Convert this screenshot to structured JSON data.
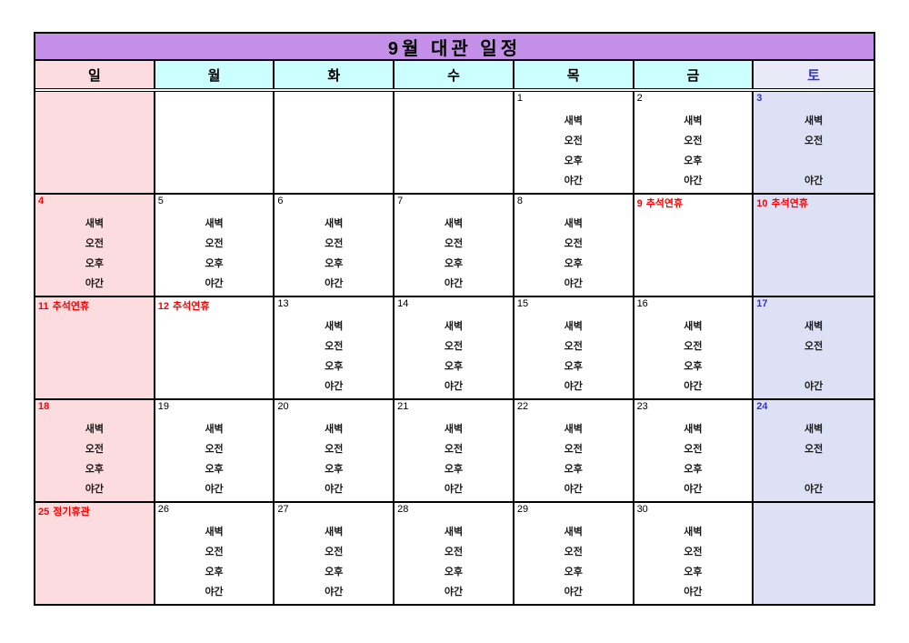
{
  "title": "9월 대관 일정",
  "weekdays": [
    {
      "label": "일"
    },
    {
      "label": "월"
    },
    {
      "label": "화"
    },
    {
      "label": "수"
    },
    {
      "label": "목"
    },
    {
      "label": "금"
    },
    {
      "label": "토"
    }
  ],
  "time_slot_labels": [
    "새벽",
    "오전",
    "오후",
    "야간"
  ],
  "colors": {
    "title_bg": "#C48FE8",
    "sunday_bg": "#FCDCDE",
    "weekday_header_bg": "#CCFFFF",
    "saturday_header_bg": "#E9E9F8",
    "saturday_cell_bg": "#DEE1F5",
    "holiday_red": "#FF0000",
    "saturday_blue": "#3333CC",
    "border": "#000000"
  },
  "weeks": [
    {
      "cells": [
        {
          "day": "",
          "color": "",
          "note": "",
          "slots": []
        },
        {
          "day": "",
          "color": "",
          "note": "",
          "slots": []
        },
        {
          "day": "",
          "color": "",
          "note": "",
          "slots": []
        },
        {
          "day": "",
          "color": "",
          "note": "",
          "slots": []
        },
        {
          "day": "1",
          "color": "black",
          "note": "",
          "slots": [
            "새벽",
            "오전",
            "오후",
            "야간"
          ]
        },
        {
          "day": "2",
          "color": "black",
          "note": "",
          "slots": [
            "새벽",
            "오전",
            "오후",
            "야간"
          ]
        },
        {
          "day": "3",
          "color": "blue",
          "note": "",
          "slots": [
            "새벽",
            "오전",
            "",
            "야간"
          ]
        }
      ]
    },
    {
      "cells": [
        {
          "day": "4",
          "color": "red",
          "note": "",
          "slots": [
            "새벽",
            "오전",
            "오후",
            "야간"
          ]
        },
        {
          "day": "5",
          "color": "black",
          "note": "",
          "slots": [
            "새벽",
            "오전",
            "오후",
            "야간"
          ]
        },
        {
          "day": "6",
          "color": "black",
          "note": "",
          "slots": [
            "새벽",
            "오전",
            "오후",
            "야간"
          ]
        },
        {
          "day": "7",
          "color": "black",
          "note": "",
          "slots": [
            "새벽",
            "오전",
            "오후",
            "야간"
          ]
        },
        {
          "day": "8",
          "color": "black",
          "note": "",
          "slots": [
            "새벽",
            "오전",
            "오후",
            "야간"
          ]
        },
        {
          "day": "9",
          "color": "red",
          "note": "추석연휴",
          "slots": []
        },
        {
          "day": "10",
          "color": "red",
          "note": "추석연휴",
          "slots": []
        }
      ]
    },
    {
      "cells": [
        {
          "day": "11",
          "color": "red",
          "note": "추석연휴",
          "slots": []
        },
        {
          "day": "12",
          "color": "red",
          "note": "추석연휴",
          "slots": []
        },
        {
          "day": "13",
          "color": "black",
          "note": "",
          "slots": [
            "새벽",
            "오전",
            "오후",
            "야간"
          ]
        },
        {
          "day": "14",
          "color": "black",
          "note": "",
          "slots": [
            "새벽",
            "오전",
            "오후",
            "야간"
          ]
        },
        {
          "day": "15",
          "color": "black",
          "note": "",
          "slots": [
            "새벽",
            "오전",
            "오후",
            "야간"
          ]
        },
        {
          "day": "16",
          "color": "black",
          "note": "",
          "slots": [
            "새벽",
            "오전",
            "오후",
            "야간"
          ]
        },
        {
          "day": "17",
          "color": "blue",
          "note": "",
          "slots": [
            "새벽",
            "오전",
            "",
            "야간"
          ]
        }
      ]
    },
    {
      "cells": [
        {
          "day": "18",
          "color": "red",
          "note": "",
          "slots": [
            "새벽",
            "오전",
            "오후",
            "야간"
          ]
        },
        {
          "day": "19",
          "color": "black",
          "note": "",
          "slots": [
            "새벽",
            "오전",
            "오후",
            "야간"
          ]
        },
        {
          "day": "20",
          "color": "black",
          "note": "",
          "slots": [
            "새벽",
            "오전",
            "오후",
            "야간"
          ]
        },
        {
          "day": "21",
          "color": "black",
          "note": "",
          "slots": [
            "새벽",
            "오전",
            "오후",
            "야간"
          ]
        },
        {
          "day": "22",
          "color": "black",
          "note": "",
          "slots": [
            "새벽",
            "오전",
            "오후",
            "야간"
          ]
        },
        {
          "day": "23",
          "color": "black",
          "note": "",
          "slots": [
            "새벽",
            "오전",
            "오후",
            "야간"
          ]
        },
        {
          "day": "24",
          "color": "blue",
          "note": "",
          "slots": [
            "새벽",
            "오전",
            "",
            "야간"
          ]
        }
      ]
    },
    {
      "cells": [
        {
          "day": "25",
          "color": "red",
          "note": "정기휴관",
          "slots": []
        },
        {
          "day": "26",
          "color": "black",
          "note": "",
          "slots": [
            "새벽",
            "오전",
            "오후",
            "야간"
          ]
        },
        {
          "day": "27",
          "color": "black",
          "note": "",
          "slots": [
            "새벽",
            "오전",
            "오후",
            "야간"
          ]
        },
        {
          "day": "28",
          "color": "black",
          "note": "",
          "slots": [
            "새벽",
            "오전",
            "오후",
            "야간"
          ]
        },
        {
          "day": "29",
          "color": "black",
          "note": "",
          "slots": [
            "새벽",
            "오전",
            "오후",
            "야간"
          ]
        },
        {
          "day": "30",
          "color": "black",
          "note": "",
          "slots": [
            "새벽",
            "오전",
            "오후",
            "야간"
          ]
        },
        {
          "day": "",
          "color": "",
          "note": "",
          "slots": []
        }
      ]
    }
  ]
}
